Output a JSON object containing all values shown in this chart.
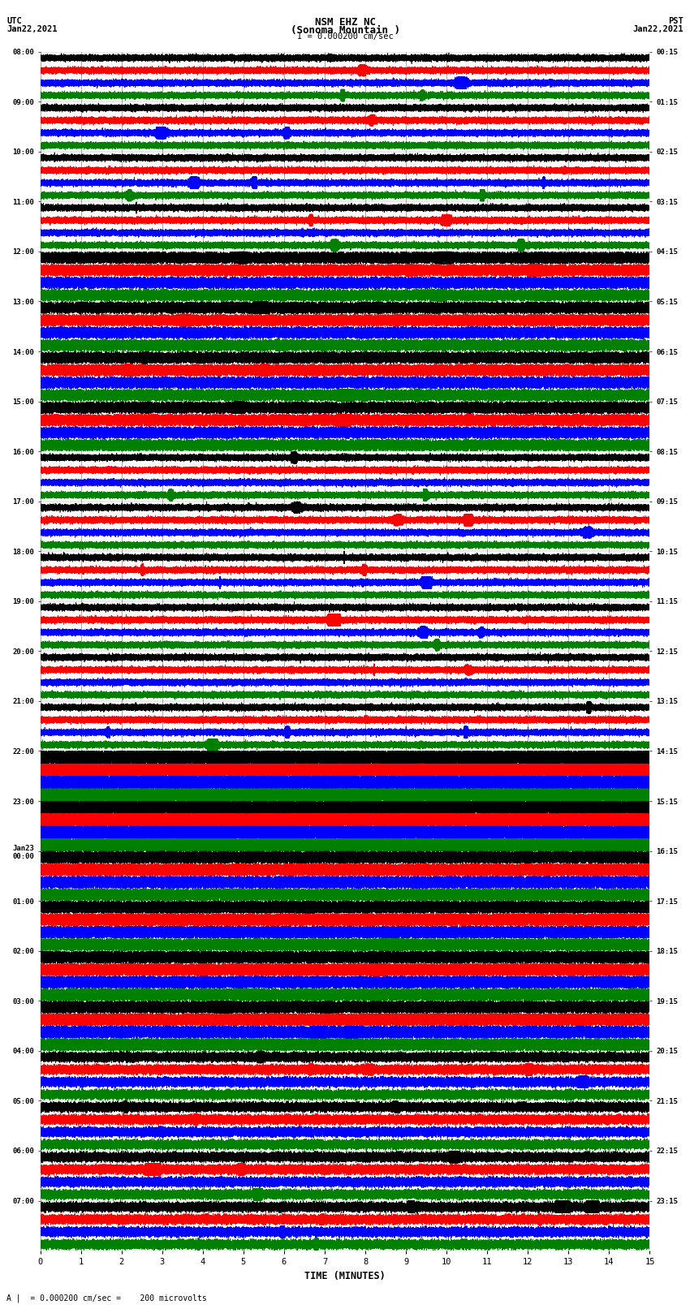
{
  "title_line1": "NSM EHZ NC",
  "title_line2": "(Sonoma Mountain )",
  "title_line3": "I = 0.000200 cm/sec",
  "left_label_top": "UTC",
  "left_label_date": "Jan22,2021",
  "right_label_top": "PST",
  "right_label_date": "Jan22,2021",
  "xlabel": "TIME (MINUTES)",
  "bottom_note": "A |  = 0.000200 cm/sec =    200 microvolts",
  "utc_times_major": [
    "08:00",
    "09:00",
    "10:00",
    "11:00",
    "12:00",
    "13:00",
    "14:00",
    "15:00",
    "16:00",
    "17:00",
    "18:00",
    "19:00",
    "20:00",
    "21:00",
    "22:00",
    "23:00",
    "Jan23\n00:00",
    "01:00",
    "02:00",
    "03:00",
    "04:00",
    "05:00",
    "06:00",
    "07:00"
  ],
  "pst_times_major": [
    "00:15",
    "01:15",
    "02:15",
    "03:15",
    "04:15",
    "05:15",
    "06:15",
    "07:15",
    "08:15",
    "09:15",
    "10:15",
    "11:15",
    "12:15",
    "13:15",
    "14:15",
    "15:15",
    "16:15",
    "17:15",
    "18:15",
    "19:15",
    "20:15",
    "21:15",
    "22:15",
    "23:15"
  ],
  "trace_colors": [
    "black",
    "red",
    "blue",
    "green"
  ],
  "num_hours": 24,
  "traces_per_hour": 4,
  "time_minutes": 15,
  "sample_rate": 100,
  "background_color": "white",
  "trace_linewidth": 0.5,
  "fig_width": 8.5,
  "fig_height": 16.13,
  "xmin": 0,
  "xmax": 15,
  "xticks": [
    0,
    1,
    2,
    3,
    4,
    5,
    6,
    7,
    8,
    9,
    10,
    11,
    12,
    13,
    14,
    15
  ]
}
